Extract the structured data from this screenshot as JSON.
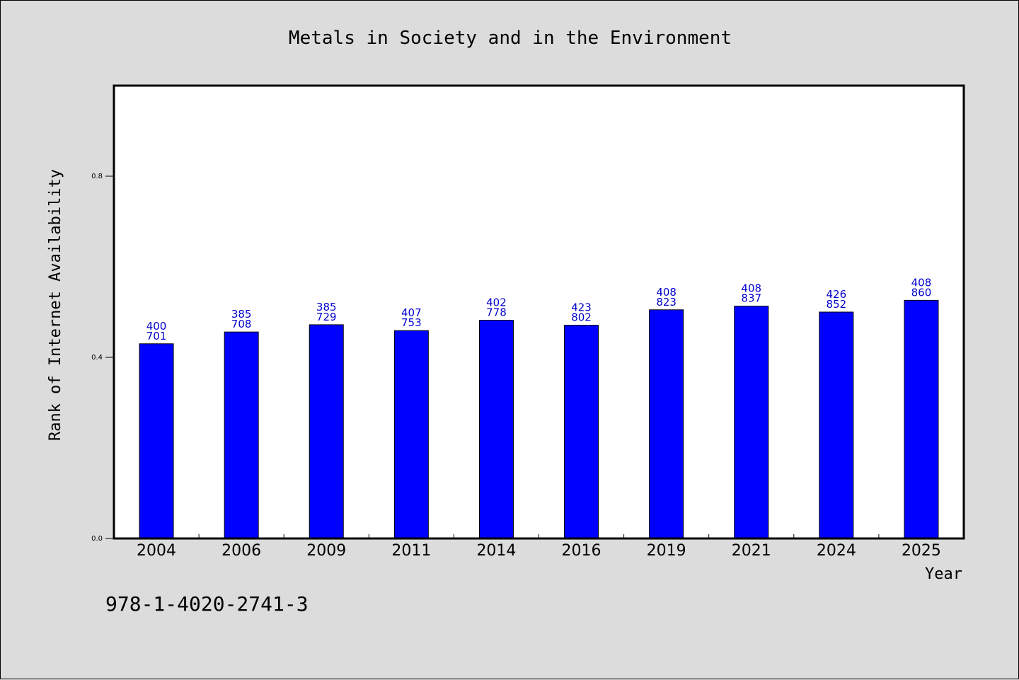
{
  "footer_text": "978-1-4020-2741-3",
  "colors": {
    "bar": "#0000ff",
    "data_label": "#0000cc",
    "background": "#dcdcdc",
    "plot_bg": "#ffffff"
  },
  "chart_data": {
    "type": "bar",
    "title": "Metals in Society and in the Environment",
    "xlabel": "Year",
    "ylabel": "Rank of Internet Availability",
    "categories": [
      "2004",
      "2006",
      "2009",
      "2011",
      "2014",
      "2016",
      "2019",
      "2021",
      "2024",
      "2025"
    ],
    "values": [
      0.43,
      0.456,
      0.472,
      0.459,
      0.482,
      0.471,
      0.505,
      0.513,
      0.5,
      0.526
    ],
    "data_labels": [
      [
        "400",
        "701"
      ],
      [
        "385",
        "708"
      ],
      [
        "385",
        "729"
      ],
      [
        "407",
        "753"
      ],
      [
        "402",
        "778"
      ],
      [
        "423",
        "802"
      ],
      [
        "408",
        "823"
      ],
      [
        "408",
        "837"
      ],
      [
        "426",
        "852"
      ],
      [
        "408",
        "860"
      ]
    ],
    "yticks": [
      0.0,
      0.4,
      0.8
    ],
    "ytick_labels": [
      "0.0",
      "0.4",
      "0.8"
    ],
    "ylim": [
      0,
      1.0
    ],
    "grid": false,
    "legend": "none"
  }
}
